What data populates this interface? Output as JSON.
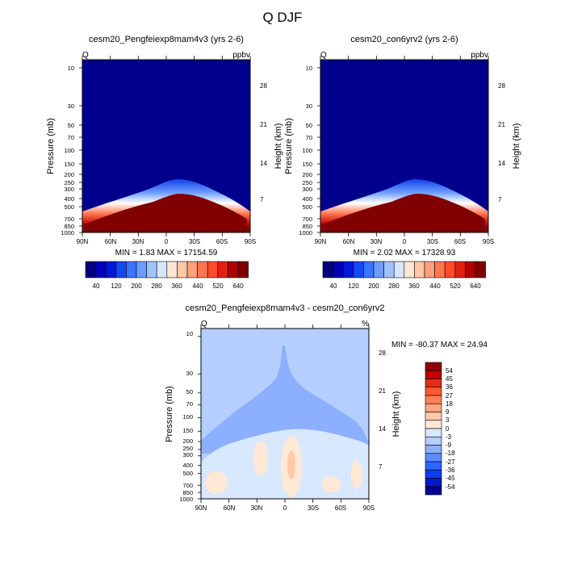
{
  "title": "Q DJF",
  "colors": {
    "scale": [
      "#00007f",
      "#0000b8",
      "#0018d8",
      "#1448f0",
      "#3a74ff",
      "#6c9cff",
      "#a2c2ff",
      "#d6e6ff",
      "#ffe6d2",
      "#ffc8a4",
      "#ffa07a",
      "#ff7650",
      "#ff4c28",
      "#e02010",
      "#b00000",
      "#800000"
    ],
    "diff": [
      "#000090",
      "#0018c8",
      "#0c3cee",
      "#2c64ff",
      "#5a8cff",
      "#8cb0ff",
      "#b4ceff",
      "#d8e8ff",
      "#ffe8d6",
      "#ffc9aa",
      "#ffa680",
      "#ff7f56",
      "#ff5a30",
      "#e03018",
      "#c00000",
      "#900000"
    ]
  },
  "chart_data": [
    {
      "type": "heatmap",
      "title": "cesm20_Pengfeiexp8mam4v3 (yrs 2-6)",
      "left_label": "Q",
      "right_label": "ppbv",
      "ylabel": "Pressure (mb)",
      "ylabel_right": "Height (km)",
      "x_ticks": [
        "90N",
        "60N",
        "30N",
        "0",
        "30S",
        "60S",
        "90S"
      ],
      "y_ticks": [
        "10",
        "30",
        "50",
        "70",
        "100",
        "150",
        "200",
        "250",
        "300",
        "400",
        "500",
        "700",
        "850",
        "1000"
      ],
      "y_ticks_right": [
        "28",
        "21",
        "14",
        "7"
      ],
      "stats": "MIN =   1.83  MAX = 17154.59",
      "colorbar_labels": [
        "40",
        "120",
        "200",
        "280",
        "360",
        "440",
        "520",
        "640"
      ],
      "y_scale": "log",
      "ylim": [
        1000,
        10
      ]
    },
    {
      "type": "heatmap",
      "title": "cesm20_con6yrv2 (yrs 2-6)",
      "left_label": "Q",
      "right_label": "ppbv",
      "ylabel": "Pressure (mb)",
      "ylabel_right": "Height (km)",
      "x_ticks": [
        "90N",
        "60N",
        "30N",
        "0",
        "30S",
        "60S",
        "90S"
      ],
      "y_ticks": [
        "10",
        "30",
        "50",
        "70",
        "100",
        "150",
        "200",
        "250",
        "300",
        "400",
        "500",
        "700",
        "850",
        "1000"
      ],
      "y_ticks_right": [
        "28",
        "21",
        "14",
        "7"
      ],
      "stats": "MIN =   2.02  MAX = 17328.93",
      "colorbar_labels": [
        "40",
        "120",
        "200",
        "280",
        "360",
        "440",
        "520",
        "640"
      ],
      "y_scale": "log",
      "ylim": [
        1000,
        10
      ]
    },
    {
      "type": "heatmap",
      "title": "cesm20_Pengfeiexp8mam4v3 - cesm20_con6yrv2",
      "left_label": "Q",
      "right_label": "%",
      "ylabel": "Pressure (mb)",
      "ylabel_right": "Height (km)",
      "x_ticks": [
        "90N",
        "60N",
        "30N",
        "0",
        "30S",
        "60S",
        "90S"
      ],
      "y_ticks": [
        "10",
        "30",
        "50",
        "70",
        "100",
        "150",
        "200",
        "250",
        "300",
        "400",
        "500",
        "700",
        "850",
        "1000"
      ],
      "y_ticks_right": [
        "28",
        "21",
        "14",
        "7"
      ],
      "stats": "MIN = -80.37  MAX =  24.94",
      "colorbar_labels": [
        "54",
        "45",
        "36",
        "27",
        "18",
        "9",
        "3",
        "0",
        "-3",
        "-9",
        "-18",
        "-27",
        "-36",
        "-45",
        "-54"
      ],
      "y_scale": "log",
      "ylim": [
        1000,
        10
      ]
    }
  ]
}
